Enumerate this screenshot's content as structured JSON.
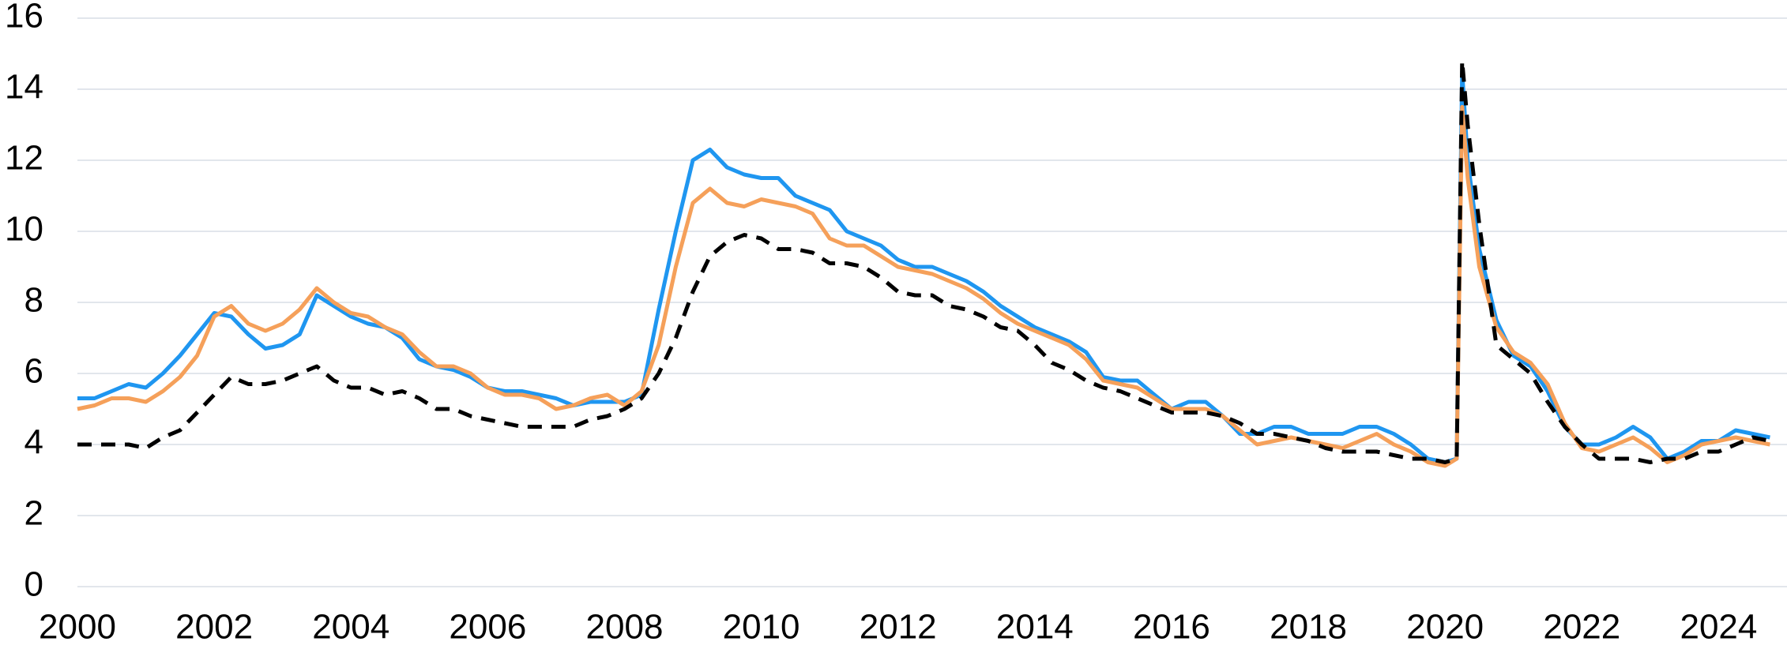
{
  "chart_data": {
    "type": "line",
    "x": [
      2000,
      2000.25,
      2000.5,
      2000.75,
      2001,
      2001.25,
      2001.5,
      2001.75,
      2002,
      2002.25,
      2002.5,
      2002.75,
      2003,
      2003.25,
      2003.5,
      2003.75,
      2004,
      2004.25,
      2004.5,
      2004.75,
      2005,
      2005.25,
      2005.5,
      2005.75,
      2006,
      2006.25,
      2006.5,
      2006.75,
      2007,
      2007.25,
      2007.5,
      2007.75,
      2008,
      2008.25,
      2008.5,
      2008.75,
      2009,
      2009.25,
      2009.5,
      2009.75,
      2010,
      2010.25,
      2010.5,
      2010.75,
      2011,
      2011.25,
      2011.5,
      2011.75,
      2012,
      2012.25,
      2012.5,
      2012.75,
      2013,
      2013.25,
      2013.5,
      2013.75,
      2014,
      2014.25,
      2014.5,
      2014.75,
      2015,
      2015.25,
      2015.5,
      2015.75,
      2016,
      2016.25,
      2016.5,
      2016.75,
      2017,
      2017.25,
      2017.5,
      2017.75,
      2018,
      2018.25,
      2018.5,
      2018.75,
      2019,
      2019.25,
      2019.5,
      2019.75,
      2020,
      2020.17,
      2020.25,
      2020.33,
      2020.5,
      2020.75,
      2021,
      2021.25,
      2021.5,
      2021.75,
      2022,
      2022.25,
      2022.5,
      2022.75,
      2023,
      2023.25,
      2023.5,
      2023.75,
      2024,
      2024.25,
      2024.5,
      2024.75
    ],
    "series": [
      {
        "color": "#1f96f0",
        "dashed": false,
        "values": [
          5.3,
          5.3,
          5.5,
          5.7,
          5.6,
          6.0,
          6.5,
          7.1,
          7.7,
          7.6,
          7.1,
          6.7,
          6.8,
          7.1,
          8.2,
          7.9,
          7.6,
          7.4,
          7.3,
          7.0,
          6.4,
          6.2,
          6.1,
          5.9,
          5.6,
          5.5,
          5.5,
          5.4,
          5.3,
          5.1,
          5.2,
          5.2,
          5.2,
          5.4,
          7.8,
          10.0,
          12.0,
          12.3,
          11.8,
          11.6,
          11.5,
          11.5,
          11.0,
          10.8,
          10.6,
          10.0,
          9.8,
          9.6,
          9.2,
          9.0,
          9.0,
          8.8,
          8.6,
          8.3,
          7.9,
          7.6,
          7.3,
          7.1,
          6.9,
          6.6,
          5.9,
          5.8,
          5.8,
          5.4,
          5.0,
          5.2,
          5.2,
          4.8,
          4.3,
          4.3,
          4.5,
          4.5,
          4.3,
          4.3,
          4.3,
          4.5,
          4.5,
          4.3,
          4.0,
          3.6,
          3.5,
          3.6,
          14.5,
          12.0,
          9.5,
          7.5,
          6.5,
          6.2,
          5.5,
          4.5,
          4.0,
          4.0,
          4.2,
          4.5,
          4.2,
          3.6,
          3.8,
          4.1,
          4.1,
          4.4,
          4.3,
          4.2
        ]
      },
      {
        "color": "#f5a05a",
        "dashed": false,
        "values": [
          5.0,
          5.1,
          5.3,
          5.3,
          5.2,
          5.5,
          5.9,
          6.5,
          7.6,
          7.9,
          7.4,
          7.2,
          7.4,
          7.8,
          8.4,
          8.0,
          7.7,
          7.6,
          7.3,
          7.1,
          6.6,
          6.2,
          6.2,
          6.0,
          5.6,
          5.4,
          5.4,
          5.3,
          5.0,
          5.1,
          5.3,
          5.4,
          5.1,
          5.5,
          6.8,
          9.0,
          10.8,
          11.2,
          10.8,
          10.7,
          10.9,
          10.8,
          10.7,
          10.5,
          9.8,
          9.6,
          9.6,
          9.3,
          9.0,
          8.9,
          8.8,
          8.6,
          8.4,
          8.1,
          7.7,
          7.4,
          7.2,
          7.0,
          6.8,
          6.4,
          5.8,
          5.7,
          5.6,
          5.3,
          5.0,
          5.0,
          5.0,
          4.8,
          4.4,
          4.0,
          4.1,
          4.2,
          4.1,
          4.0,
          3.9,
          4.1,
          4.3,
          4.0,
          3.8,
          3.5,
          3.4,
          3.6,
          13.5,
          11.5,
          9.0,
          7.3,
          6.6,
          6.3,
          5.7,
          4.6,
          3.9,
          3.8,
          4.0,
          4.2,
          3.9,
          3.5,
          3.7,
          4.0,
          4.1,
          4.2,
          4.1,
          4.0
        ]
      },
      {
        "color": "#000000",
        "dashed": true,
        "values": [
          4.0,
          4.0,
          4.0,
          4.0,
          3.9,
          4.2,
          4.4,
          4.9,
          5.4,
          5.9,
          5.7,
          5.7,
          5.8,
          6.0,
          6.2,
          5.8,
          5.6,
          5.6,
          5.4,
          5.5,
          5.3,
          5.0,
          5.0,
          4.8,
          4.7,
          4.6,
          4.5,
          4.5,
          4.5,
          4.5,
          4.7,
          4.8,
          5.0,
          5.3,
          6.0,
          7.0,
          8.3,
          9.3,
          9.7,
          9.9,
          9.8,
          9.5,
          9.5,
          9.4,
          9.1,
          9.1,
          9.0,
          8.7,
          8.3,
          8.2,
          8.2,
          7.9,
          7.8,
          7.6,
          7.3,
          7.2,
          6.8,
          6.3,
          6.1,
          5.8,
          5.6,
          5.5,
          5.3,
          5.1,
          4.9,
          4.9,
          4.9,
          4.8,
          4.6,
          4.3,
          4.3,
          4.2,
          4.1,
          3.9,
          3.8,
          3.8,
          3.8,
          3.7,
          3.6,
          3.6,
          3.5,
          3.6,
          14.8,
          13.0,
          10.2,
          6.8,
          6.4,
          6.0,
          5.2,
          4.5,
          4.0,
          3.6,
          3.6,
          3.6,
          3.5,
          3.6,
          3.6,
          3.8,
          3.8,
          4.0,
          4.2,
          4.1
        ]
      }
    ],
    "xlim": [
      2000,
      2025
    ],
    "xticks": [
      2000,
      2002,
      2004,
      2006,
      2008,
      2010,
      2012,
      2014,
      2016,
      2018,
      2020,
      2022,
      2024
    ],
    "ylim": [
      0,
      16
    ],
    "yticks": [
      0,
      2,
      4,
      6,
      8,
      10,
      12,
      14,
      16
    ],
    "grid": true
  }
}
